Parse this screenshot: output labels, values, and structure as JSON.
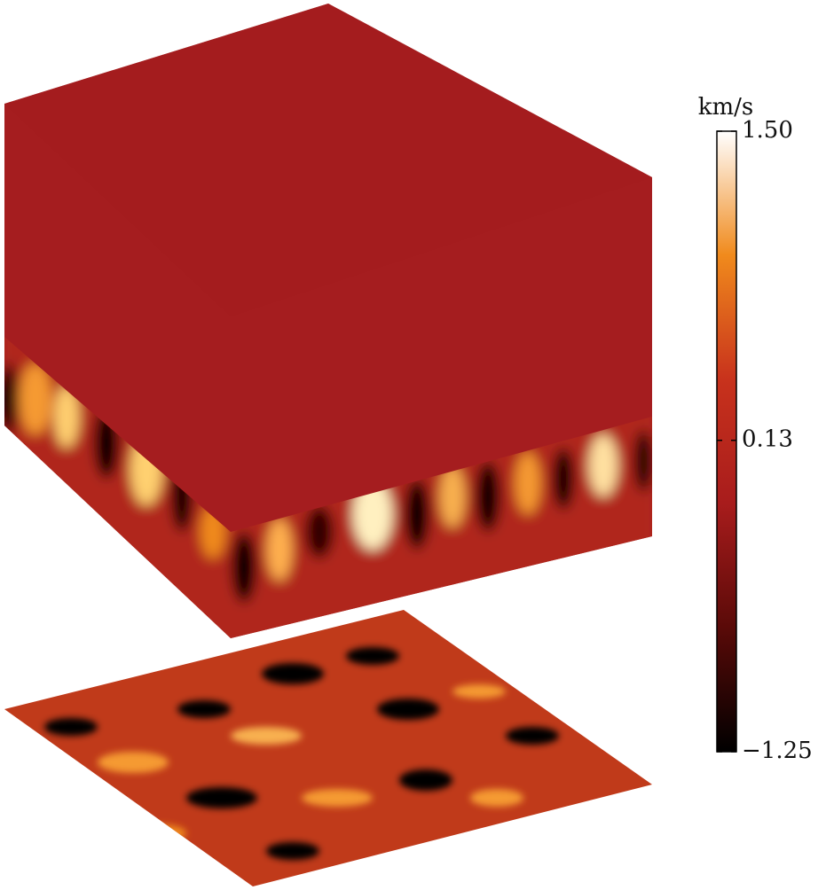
{
  "chart_data": {
    "type": "volume",
    "colorbar_label": "km/s",
    "clim": [
      -1.25,
      1.5
    ],
    "cticks": [
      {
        "value": -1.25,
        "label": "−1.25"
      },
      0.13,
      {
        "value": 1.5,
        "label": "1.50"
      }
    ],
    "colormap": [
      "#000000",
      "#5a0a08",
      "#a81c1c",
      "#c8321c",
      "#f08a1c",
      "#ffffff"
    ]
  }
}
